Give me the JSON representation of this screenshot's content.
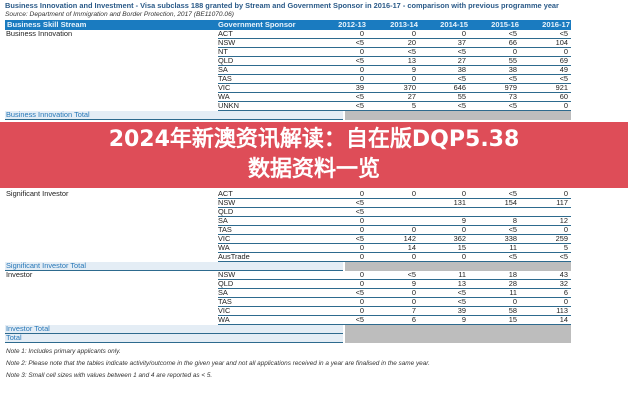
{
  "title": "Business Innovation and Investment - Visa subclass 188 granted by Stream and Government Sponsor in 2016-17 - comparison with previous programme year",
  "source": "Source: Department of Immigration and Border Protection, 2017 (BE11070.06)",
  "headers": [
    "Business Skill Stream",
    "Government Sponsor",
    "2012-13",
    "2013-14",
    "2014-15",
    "2015-16",
    "2016-17"
  ],
  "groups": [
    {
      "stream": "Business Innovation",
      "total_label": "Business Innovation Total",
      "rows": [
        {
          "sponsor": "ACT",
          "values": [
            "0",
            "0",
            "0",
            "<5",
            "<5"
          ]
        },
        {
          "sponsor": "NSW",
          "values": [
            "<5",
            "20",
            "37",
            "66",
            "104"
          ]
        },
        {
          "sponsor": "NT",
          "values": [
            "0",
            "<5",
            "<5",
            "0",
            "0"
          ]
        },
        {
          "sponsor": "QLD",
          "values": [
            "<5",
            "13",
            "27",
            "55",
            "69"
          ]
        },
        {
          "sponsor": "SA",
          "values": [
            "0",
            "9",
            "38",
            "38",
            "49"
          ]
        },
        {
          "sponsor": "TAS",
          "values": [
            "0",
            "0",
            "<5",
            "<5",
            "<5"
          ]
        },
        {
          "sponsor": "VIC",
          "values": [
            "39",
            "370",
            "646",
            "979",
            "921"
          ]
        },
        {
          "sponsor": "WA",
          "values": [
            "<5",
            "27",
            "55",
            "73",
            "60"
          ]
        },
        {
          "sponsor": "UNKN",
          "values": [
            "<5",
            "5",
            "<5",
            "<5",
            "0"
          ]
        }
      ]
    },
    {
      "stream": "Significant Investor",
      "total_label": "Significant Investor Total",
      "rows": [
        {
          "sponsor": "ACT",
          "values": [
            "0",
            "0",
            "0",
            "<5",
            "0"
          ]
        },
        {
          "sponsor": "NSW",
          "values": [
            "<5",
            "",
            "131",
            "154",
            "117"
          ]
        },
        {
          "sponsor": "QLD",
          "values": [
            "<5",
            "",
            "",
            "",
            ""
          ]
        },
        {
          "sponsor": "SA",
          "values": [
            "0",
            "",
            "9",
            "8",
            "12"
          ]
        },
        {
          "sponsor": "TAS",
          "values": [
            "0",
            "0",
            "0",
            "<5",
            "0"
          ]
        },
        {
          "sponsor": "VIC",
          "values": [
            "<5",
            "142",
            "362",
            "338",
            "259"
          ]
        },
        {
          "sponsor": "WA",
          "values": [
            "0",
            "14",
            "15",
            "11",
            "5"
          ]
        },
        {
          "sponsor": "AusTrade",
          "values": [
            "0",
            "0",
            "0",
            "<5",
            "<5"
          ]
        }
      ]
    },
    {
      "stream": "Investor",
      "total_label": "Investor Total",
      "rows": [
        {
          "sponsor": "NSW",
          "values": [
            "0",
            "<5",
            "11",
            "18",
            "43"
          ]
        },
        {
          "sponsor": "QLD",
          "values": [
            "0",
            "9",
            "13",
            "28",
            "32"
          ]
        },
        {
          "sponsor": "SA",
          "values": [
            "<5",
            "0",
            "<5",
            "11",
            "6"
          ]
        },
        {
          "sponsor": "TAS",
          "values": [
            "0",
            "0",
            "<5",
            "0",
            "0"
          ]
        },
        {
          "sponsor": "VIC",
          "values": [
            "0",
            "7",
            "39",
            "58",
            "113"
          ]
        },
        {
          "sponsor": "WA",
          "values": [
            "<5",
            "6",
            "9",
            "15",
            "14"
          ]
        }
      ]
    }
  ],
  "grand_total_label": "Total",
  "notes": [
    "Note 1: Includes primary applicants only.",
    "Note 2: Please note that the tables indicate activity/outcome in the given year and not all applications received in a year are finalised in the same year.",
    "Note 3: Small cell sizes with values between 1 and 4 are reported as < 5."
  ],
  "banner": {
    "line1": "2024年新澳资讯解读：自在版DQP5.38",
    "line2": "数据资料一览"
  },
  "colors": {
    "header": "#1a7bc0",
    "banner": "#db3e4a",
    "total_text": "#2878b8"
  }
}
